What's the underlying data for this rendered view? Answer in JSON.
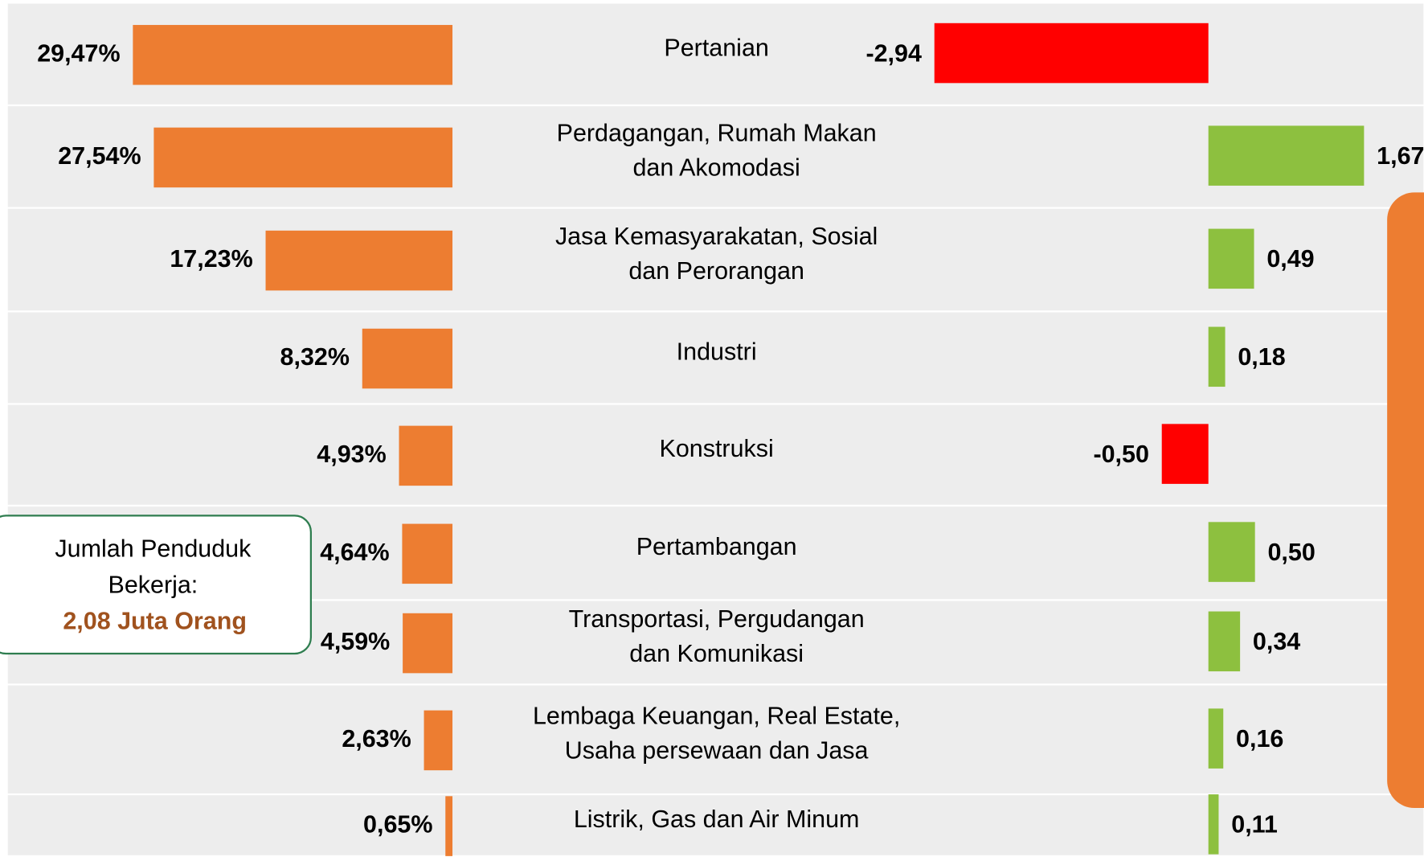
{
  "chart_data": {
    "type": "bar",
    "categories": [
      [
        "Pertanian"
      ],
      [
        "Perdagangan, Rumah Makan",
        "dan Akomodasi"
      ],
      [
        "Jasa Kemasyarakatan, Sosial",
        "dan Perorangan"
      ],
      [
        "Industri"
      ],
      [
        "Konstruksi"
      ],
      [
        "Pertambangan"
      ],
      [
        "Transportasi, Pergudangan",
        "dan Komunikasi"
      ],
      [
        "Lembaga Keuangan, Real Estate,",
        "Usaha persewaan dan Jasa"
      ],
      [
        "Listrik, Gas dan Air Minum"
      ]
    ],
    "share": {
      "color": "#ed7d31",
      "values": [
        29.47,
        27.54,
        17.23,
        8.32,
        4.93,
        4.64,
        4.59,
        2.63,
        0.65
      ],
      "value_labels": [
        "29,47%",
        "27,54%",
        "17,23%",
        "8,32%",
        "4,93%",
        "4,64%",
        "4,59%",
        "2,63%",
        "0,65%"
      ]
    },
    "change": {
      "positive_color": "#8dc03f",
      "negative_color": "#ff0000",
      "values": [
        -2.94,
        1.67,
        0.49,
        0.18,
        -0.5,
        0.5,
        0.34,
        0.16,
        0.11
      ],
      "value_labels": [
        "-2,94",
        "1,67",
        "0,49",
        "0,18",
        "-0,50",
        "0,50",
        "0,34",
        "0,16",
        "0,11"
      ]
    },
    "annotation": {
      "lines": [
        "Jumlah Penduduk",
        "Bekerja:"
      ],
      "highlight": "2,08 Juta Orang"
    }
  }
}
